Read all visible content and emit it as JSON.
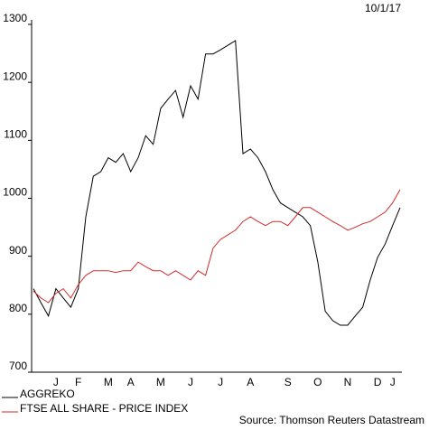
{
  "chart_data": {
    "type": "line",
    "date": "10/1/17",
    "source": "Source: Thomson Reuters Datastream",
    "categories": [
      null,
      null,
      null,
      "J",
      null,
      null,
      "F",
      null,
      null,
      null,
      "M",
      null,
      null,
      "A",
      null,
      null,
      null,
      "M",
      null,
      null,
      null,
      "J",
      null,
      null,
      null,
      "J",
      null,
      null,
      null,
      "A",
      null,
      null,
      null,
      null,
      "S",
      null,
      null,
      null,
      "O",
      null,
      null,
      null,
      "N",
      null,
      null,
      null,
      "D",
      null,
      "J",
      null
    ],
    "series": [
      {
        "name": "AGGREKO",
        "color": "#000000",
        "values": [
          844,
          820,
          797,
          844,
          828,
          812,
          844,
          968,
          1038,
          1046,
          1070,
          1062,
          1077,
          1046,
          1070,
          1108,
          1093,
          1155,
          1171,
          1186,
          1140,
          1194,
          1171,
          1249,
          1249,
          1256,
          1264,
          1272,
          1077,
          1085,
          1070,
          1046,
          1015,
          992,
          984,
          976,
          968,
          953,
          890,
          805,
          789,
          781,
          781,
          797,
          812,
          859,
          898,
          921,
          953,
          984
        ]
      },
      {
        "name": "FTSE ALL SHARE - PRICE INDEX",
        "color": "#d42a2a",
        "values": [
          840,
          828,
          820,
          836,
          844,
          828,
          851,
          867,
          875,
          875,
          875,
          872,
          875,
          875,
          890,
          882,
          875,
          875,
          867,
          875,
          867,
          859,
          875,
          867,
          914,
          929,
          937,
          945,
          960,
          968,
          960,
          953,
          960,
          960,
          953,
          968,
          984,
          984,
          976,
          968,
          960,
          953,
          945,
          950,
          956,
          960,
          968,
          976,
          992,
          1015
        ]
      }
    ],
    "ylim": [
      700,
      1300
    ],
    "yticks": [
      700,
      800,
      900,
      1000,
      1100,
      1200,
      1300
    ]
  }
}
